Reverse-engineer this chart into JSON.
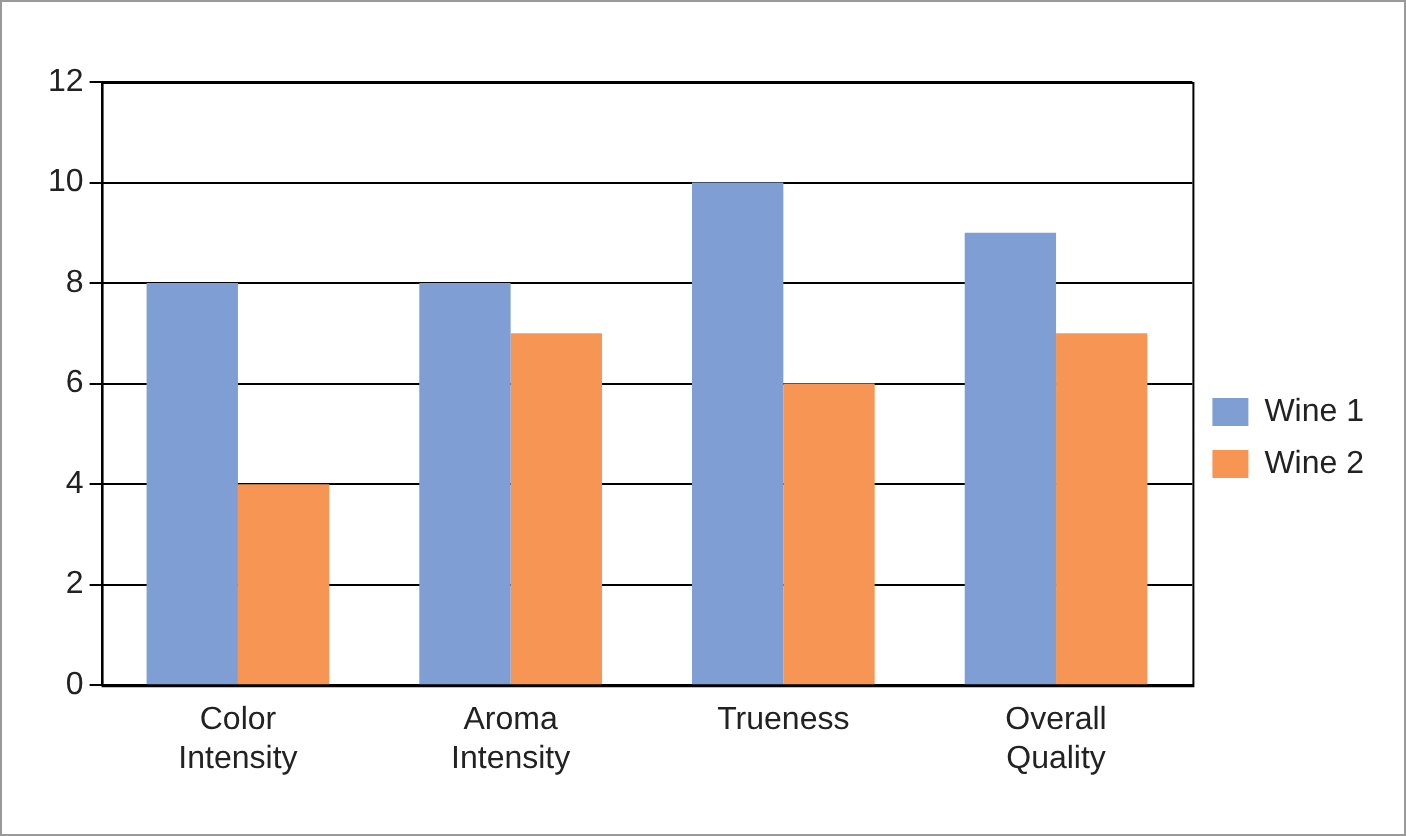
{
  "chart_data": {
    "type": "bar",
    "categories": [
      "Color Intensity",
      "Aroma Intensity",
      "Trueness",
      "Overall Quality"
    ],
    "series": [
      {
        "name": "Wine 1",
        "color": "#7f9fd4",
        "values": [
          8,
          8,
          10,
          9
        ]
      },
      {
        "name": "Wine 2",
        "color": "#f79654",
        "values": [
          4,
          7,
          6,
          7
        ]
      }
    ],
    "ylim": [
      0,
      12
    ],
    "yticks": [
      0,
      2,
      4,
      6,
      8,
      10,
      12
    ],
    "grid": "y",
    "legend": "right"
  }
}
